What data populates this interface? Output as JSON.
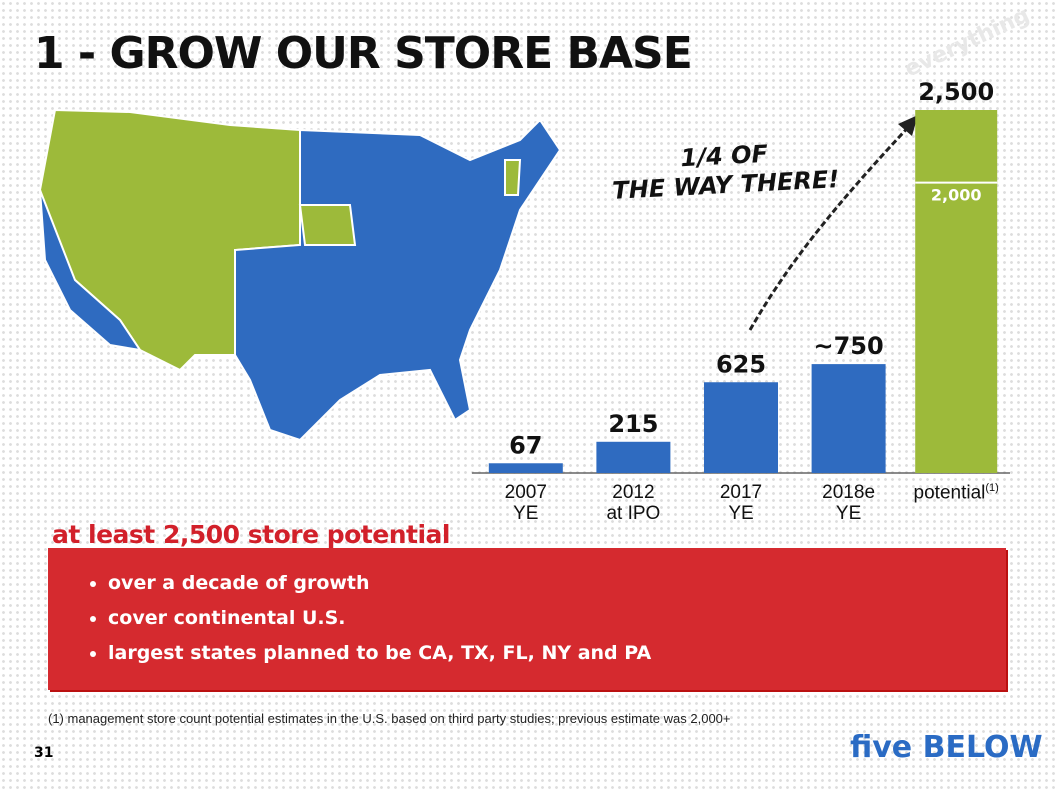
{
  "title": "1 - GROW OUR STORE BASE",
  "stamp": "everything",
  "chart_data": {
    "type": "bar",
    "categories": [
      "2007\nYE",
      "2012\nat IPO",
      "2017\nYE",
      "2018e\nYE",
      "potential"
    ],
    "category_note": "(1)",
    "values": [
      67,
      215,
      625,
      750,
      2500
    ],
    "value_labels": [
      "67",
      "215",
      "625",
      "~750",
      "2,500"
    ],
    "colors": [
      "#2f6bc0",
      "#2f6bc0",
      "#2f6bc0",
      "#2f6bc0",
      "#9dba3a"
    ],
    "ylim": [
      0,
      2500
    ],
    "marker": {
      "value": 2000,
      "label": "2,000"
    },
    "annotation": "1/4 OF\nTHE WAY THERE!"
  },
  "callout": {
    "heading": "at least 2,500 store potential",
    "bullets": [
      "over a decade of growth",
      "cover continental U.S.",
      "largest states planned to be CA, TX, FL, NY and PA"
    ]
  },
  "footnote": "(1) management store count potential estimates in the U.S. based on third party studies; previous estimate was 2,000+",
  "page_number": "31",
  "logo": "five BELOW"
}
